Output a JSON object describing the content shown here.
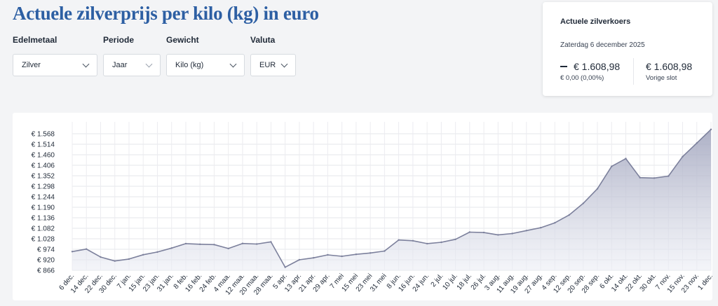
{
  "page": {
    "title": "Actuele zilverprijs per kilo (kg) in euro"
  },
  "filters": [
    {
      "label": "Edelmetaal",
      "value": "Zilver"
    },
    {
      "label": "Periode",
      "value": "Jaar"
    },
    {
      "label": "Gewicht",
      "value": "Kilo (kg)"
    },
    {
      "label": "Valuta",
      "value": "EUR"
    }
  ],
  "quote": {
    "title": "Actuele zilverkoers",
    "date": "Zaterdag 6 december 2025",
    "current_price": "€ 1.608,98",
    "change": "€ 0,00 (0,00%)",
    "previous_price": "€ 1.608,98",
    "previous_label": "Vorige slot"
  },
  "chart_data": {
    "type": "area",
    "title": "",
    "xlabel": "",
    "ylabel": "",
    "grid": true,
    "color": "#8b8fa8",
    "ylim": [
      866,
      1611
    ],
    "yticks": [
      866,
      920,
      974,
      1028,
      1082,
      1136,
      1190,
      1244,
      1298,
      1352,
      1406,
      1460,
      1514,
      1568
    ],
    "ytick_labels": [
      "€ 866",
      "€ 920",
      "€ 974",
      "€ 1.028",
      "€ 1.082",
      "€ 1.136",
      "€ 1.190",
      "€ 1.244",
      "€ 1.298",
      "€ 1.352",
      "€ 1.406",
      "€ 1.460",
      "€ 1.514",
      "€ 1.568"
    ],
    "xticks": [
      "6 dec.",
      "14 dec.",
      "22 dec.",
      "30 dec.",
      "7 jan.",
      "15 jan.",
      "23 jan.",
      "31 jan.",
      "8 feb.",
      "16 feb.",
      "24 feb.",
      "4 maa.",
      "12 maa.",
      "20 maa.",
      "28 maa.",
      "5 apr.",
      "13 apr.",
      "21 apr.",
      "29 apr.",
      "7 mei",
      "15 mei",
      "23 mei",
      "31 mei",
      "8 jun.",
      "16 jun.",
      "24 jun.",
      "2 jul.",
      "10 jul.",
      "18 jul.",
      "26 jul.",
      "3 aug.",
      "11 aug.",
      "19 aug.",
      "27 aug.",
      "4 sep.",
      "12 sep.",
      "20 sep.",
      "28 sep.",
      "6 okt.",
      "14 okt.",
      "22 okt.",
      "30 okt.",
      "7 nov.",
      "15 nov.",
      "23 nov.",
      "1 dec."
    ],
    "x": [
      "6 dec.",
      "14 dec.",
      "22 dec.",
      "30 dec.",
      "7 jan.",
      "15 jan.",
      "23 jan.",
      "31 jan.",
      "8 feb.",
      "16 feb.",
      "24 feb.",
      "4 maa.",
      "12 maa.",
      "20 maa.",
      "28 maa.",
      "5 apr.",
      "13 apr.",
      "21 apr.",
      "29 apr.",
      "7 mei",
      "15 mei",
      "23 mei",
      "31 mei",
      "8 jun.",
      "16 jun.",
      "24 jun.",
      "2 jul.",
      "10 jul.",
      "18 jul.",
      "26 jul.",
      "3 aug.",
      "11 aug.",
      "19 aug.",
      "27 aug.",
      "4 sep.",
      "12 sep.",
      "20 sep.",
      "28 sep.",
      "6 okt.",
      "14 okt.",
      "22 okt.",
      "30 okt.",
      "7 nov.",
      "15 nov.",
      "23 nov.",
      "1 dec."
    ],
    "values": [
      962,
      975,
      934,
      914,
      924,
      946,
      960,
      980,
      1003,
      1000,
      998,
      978,
      1004,
      1001,
      1012,
      882,
      920,
      930,
      945,
      938,
      948,
      955,
      965,
      1022,
      1018,
      1003,
      1010,
      1025,
      1062,
      1060,
      1048,
      1055,
      1070,
      1085,
      1110,
      1150,
      1210,
      1285,
      1400,
      1440,
      1342,
      1340,
      1350,
      1450,
      1520,
      1590
    ]
  }
}
